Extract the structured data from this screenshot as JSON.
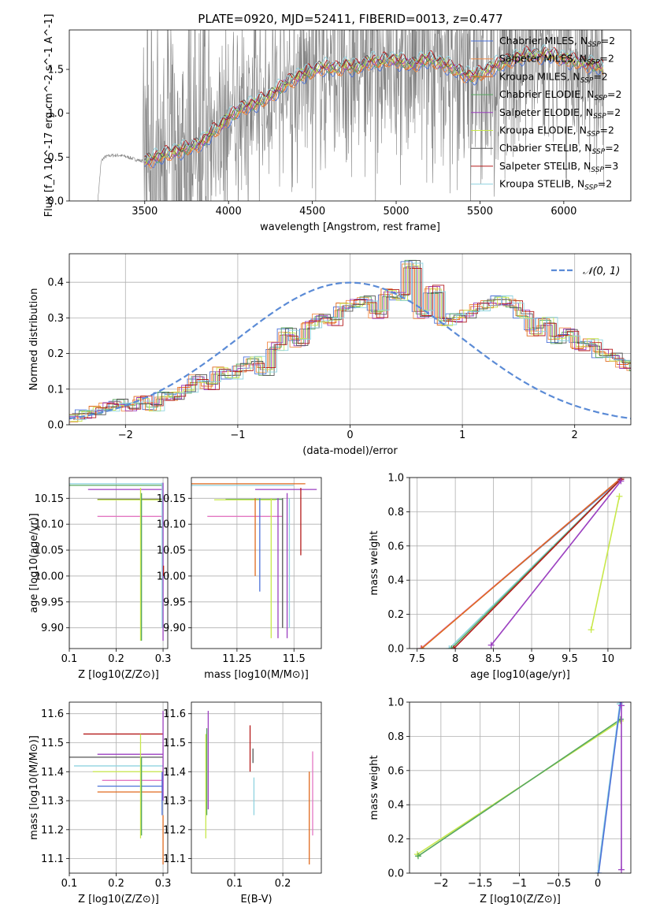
{
  "figure_title": "PLATE=0920, MJD=52411, FIBERID=0013, z=0.477",
  "colors": {
    "Chabrier MILES": "#4c72d8",
    "Salpeter MILES": "#f28d4a",
    "Kroupa MILES": "#e06a1e",
    "Chabrier ELODIE": "#58a860",
    "Salpeter ELODIE": "#9b3fc0",
    "Kroupa ELODIE": "#c8e84a",
    "Chabrier STELIB": "#555555",
    "Salpeter STELIB": "#b41a1a",
    "Kroupa STELIB": "#8fd3e0",
    "data": "#808080",
    "gaussian": "#5b8bd6",
    "pink": "#e377c2"
  },
  "chart_data": [
    {
      "id": "spectrum",
      "type": "line",
      "title": "PLATE=0920, MJD=52411, FIBERID=0013, z=0.477",
      "xlabel": "wavelength [Angstrom, rest frame]",
      "ylabel": "Flux [f_λ 10^-17 erg cm^-2 s^-1 A^-1]",
      "xlim": [
        3050,
        6400
      ],
      "ylim": [
        0,
        1.95
      ],
      "xticks": [
        3500,
        4000,
        4500,
        5000,
        5500,
        6000
      ],
      "yticks": [
        0.0,
        0.5,
        1.0,
        1.5
      ],
      "grid": false,
      "legend_position": "top-right",
      "legend": [
        "Chabrier MILES, N_SSP=2",
        "Salpeter MILES, N_SSP=2",
        "Kroupa MILES, N_SSP=2",
        "Chabrier ELODIE, N_SSP=2",
        "Salpeter ELODIE, N_SSP=2",
        "Kroupa ELODIE, N_SSP=2",
        "Chabrier STELIB, N_SSP=2",
        "Salpeter STELIB, N_SSP=3",
        "Kroupa STELIB, N_SSP=2"
      ],
      "continuum_x": [
        3220,
        3240,
        3260,
        3300,
        3350,
        3400,
        3450,
        3500,
        3550,
        3600,
        3650,
        3700,
        3750,
        3800,
        3850,
        3900,
        3950,
        4000,
        4050,
        4100,
        4150,
        4200,
        4250,
        4300,
        4350,
        4400,
        4450,
        4500,
        4550,
        4600,
        4650,
        4700,
        4750,
        4800,
        4850,
        4900,
        4950,
        5000,
        5050,
        5100,
        5150,
        5200,
        5250,
        5300,
        5350,
        5400,
        5450,
        5500,
        5550,
        5600,
        5650,
        5700,
        5750,
        5800,
        5850,
        5900,
        5950,
        6000,
        6050,
        6100,
        6150,
        6200,
        6240
      ],
      "continuum_y": [
        0.0,
        0.45,
        0.5,
        0.52,
        0.52,
        0.5,
        0.47,
        0.45,
        0.48,
        0.52,
        0.55,
        0.57,
        0.6,
        0.63,
        0.68,
        0.78,
        0.85,
        0.95,
        1.02,
        1.08,
        1.1,
        1.15,
        1.2,
        1.28,
        1.35,
        1.4,
        1.45,
        1.48,
        1.52,
        1.53,
        1.5,
        1.55,
        1.52,
        1.55,
        1.6,
        1.58,
        1.62,
        1.6,
        1.58,
        1.55,
        1.6,
        1.62,
        1.58,
        1.55,
        1.5,
        1.45,
        1.42,
        1.45,
        1.5,
        1.55,
        1.58,
        1.62,
        1.65,
        1.68,
        1.65,
        1.68,
        1.65,
        1.62,
        1.6,
        1.58,
        1.55,
        1.55,
        1.5
      ]
    },
    {
      "id": "residuals",
      "type": "line",
      "xlabel": "(data-model)/error",
      "ylabel": "Normed distribution",
      "xlim": [
        -2.5,
        2.5
      ],
      "ylim": [
        0,
        0.48
      ],
      "xticks": [
        -2,
        -1,
        0,
        1,
        2
      ],
      "yticks": [
        0.0,
        0.1,
        0.2,
        0.3,
        0.4
      ],
      "grid": true,
      "legend_position": "top-right",
      "legend": [
        "𝒩(0, 1)"
      ],
      "bin_width": 0.1,
      "bin_start": -2.5,
      "hist": [
        0.02,
        0.03,
        0.04,
        0.05,
        0.06,
        0.05,
        0.07,
        0.05,
        0.08,
        0.08,
        0.1,
        0.13,
        0.11,
        0.15,
        0.14,
        0.16,
        0.18,
        0.15,
        0.22,
        0.26,
        0.23,
        0.28,
        0.3,
        0.29,
        0.33,
        0.34,
        0.35,
        0.31,
        0.37,
        0.36,
        0.45,
        0.31,
        0.38,
        0.29,
        0.3,
        0.31,
        0.33,
        0.34,
        0.35,
        0.34,
        0.31,
        0.26,
        0.29,
        0.24,
        0.26,
        0.22,
        0.23,
        0.2,
        0.19,
        0.17,
        0.16,
        0.14,
        0.12,
        0.13,
        0.11,
        0.1,
        0.09,
        0.08,
        0.08,
        0.07,
        0.07,
        0.06,
        0.05,
        0.05,
        0.04,
        0.04,
        0.05,
        0.03,
        0.06,
        0.05
      ]
    },
    {
      "id": "age-vs-Z",
      "type": "scatter",
      "xlabel": "Z [log10(Z/Z⊙)]",
      "ylabel": "age  [log10(age/yr)]",
      "xlim": [
        0.1,
        0.31
      ],
      "ylim": [
        9.86,
        10.19
      ],
      "xticks": [
        0.1,
        0.2,
        0.3
      ],
      "yticks": [
        9.9,
        9.95,
        10.0,
        10.05,
        10.1,
        10.15
      ],
      "grid": true
    },
    {
      "id": "age-vs-mass",
      "type": "scatter",
      "xlabel": "mass [log10(M/M⊙)]",
      "ylabel": "",
      "xlim": [
        11.05,
        11.62
      ],
      "ylim": [
        9.86,
        10.19
      ],
      "xticks": [
        11.25,
        11.5
      ],
      "yticks": [
        9.9,
        9.95,
        10.0,
        10.05,
        10.1,
        10.15
      ],
      "grid": true
    },
    {
      "id": "massweight-vs-age",
      "type": "line",
      "xlabel": "age  [log10(age/yr)]",
      "ylabel": "mass weight",
      "xlim": [
        7.4,
        10.3
      ],
      "ylim": [
        0,
        1.0
      ],
      "xticks": [
        7.5,
        8.0,
        8.5,
        9.0,
        9.5,
        10.0
      ],
      "yticks": [
        0.0,
        0.2,
        0.4,
        0.6,
        0.8,
        1.0
      ],
      "grid": true
    },
    {
      "id": "mass-vs-Z",
      "type": "scatter",
      "xlabel": "Z [log10(Z/Z⊙)]",
      "ylabel": "mass [log10(M/M⊙)]",
      "xlim": [
        0.1,
        0.31
      ],
      "ylim": [
        11.05,
        11.64
      ],
      "xticks": [
        0.1,
        0.2,
        0.3
      ],
      "yticks": [
        11.1,
        11.2,
        11.3,
        11.4,
        11.5,
        11.6
      ],
      "grid": true
    },
    {
      "id": "mass-vs-ebv",
      "type": "scatter",
      "xlabel": "E(B-V)",
      "ylabel": "",
      "xlim": [
        0.01,
        0.28
      ],
      "ylim": [
        11.05,
        11.64
      ],
      "xticks": [
        0.1,
        0.2
      ],
      "yticks": [
        11.1,
        11.2,
        11.3,
        11.4,
        11.5,
        11.6
      ],
      "grid": true
    },
    {
      "id": "massweight-vs-Z",
      "type": "line",
      "xlabel": "Z [log10(Z/Z⊙)]",
      "ylabel": "mass weight",
      "xlim": [
        -2.4,
        0.42
      ],
      "ylim": [
        0,
        1.0
      ],
      "xticks": [
        -2.0,
        -1.5,
        -1.0,
        -0.5,
        0.0
      ],
      "yticks": [
        0.0,
        0.2,
        0.4,
        0.6,
        0.8,
        1.0
      ],
      "grid": true
    }
  ]
}
